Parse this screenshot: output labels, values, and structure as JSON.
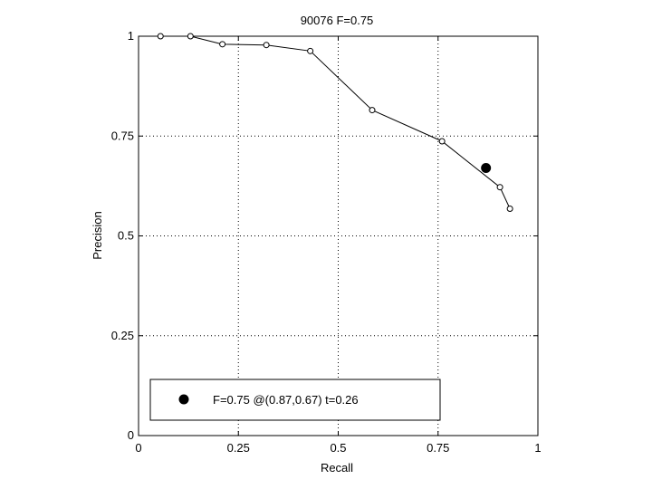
{
  "chart_data": {
    "type": "line",
    "title": "90076 F=0.75",
    "xlabel": "Recall",
    "ylabel": "Precision",
    "xlim": [
      0,
      1
    ],
    "ylim": [
      0,
      1
    ],
    "xticks": [
      0,
      0.25,
      0.5,
      0.75,
      1
    ],
    "yticks": [
      0,
      0.25,
      0.5,
      0.75,
      1
    ],
    "xtick_labels": [
      "0",
      "0.25",
      "0.5",
      "0.75",
      "1"
    ],
    "ytick_labels": [
      "0",
      "0.25",
      "0.5",
      "0.75",
      "1"
    ],
    "grid": true,
    "legend_position": "bottom-left",
    "series": [
      {
        "marker": "open-circle",
        "color": "#000000",
        "x": [
          0.055,
          0.13,
          0.21,
          0.32,
          0.43,
          0.585,
          0.76,
          0.905,
          0.93
        ],
        "y": [
          1.0,
          1.0,
          0.98,
          0.978,
          0.963,
          0.815,
          0.737,
          0.622,
          0.568
        ]
      }
    ],
    "highlight_point": {
      "x": 0.87,
      "y": 0.67,
      "marker": "filled-circle",
      "color": "#000000",
      "label": "F=0.75 @(0.87,0.67) t=0.26"
    }
  }
}
